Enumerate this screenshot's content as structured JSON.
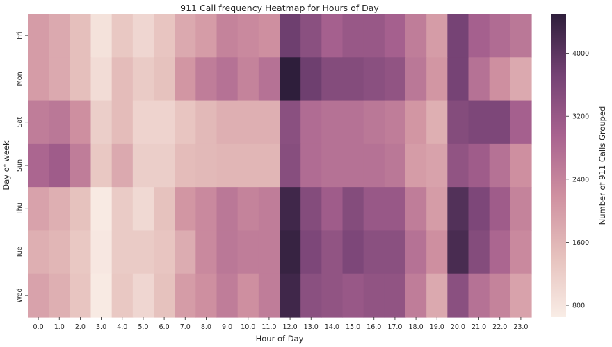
{
  "chart_data": {
    "type": "heatmap",
    "title": "911 Call frequency Heatmap for Hours of Day",
    "xlabel": "Hour of Day",
    "ylabel": "Day of week",
    "x": [
      "0.0",
      "1.0",
      "2.0",
      "3.0",
      "4.0",
      "5.0",
      "6.0",
      "7.0",
      "8.0",
      "9.0",
      "10.0",
      "11.0",
      "12.0",
      "13.0",
      "14.0",
      "15.0",
      "16.0",
      "17.0",
      "18.0",
      "19.0",
      "20.0",
      "21.0",
      "22.0",
      "23.0"
    ],
    "y": [
      "Fri",
      "Mon",
      "Sat",
      "Sun",
      "Thu",
      "Tue",
      "Wed"
    ],
    "values": [
      [
        2000,
        1800,
        1450,
        850,
        1300,
        1050,
        1350,
        1800,
        2000,
        2400,
        2300,
        2200,
        3800,
        3400,
        3000,
        3200,
        3200,
        3000,
        2500,
        2000,
        3700,
        3000,
        2800,
        2600
      ],
      [
        2000,
        1800,
        1450,
        950,
        1500,
        1250,
        1400,
        2100,
        2500,
        2700,
        2400,
        2700,
        4500,
        3800,
        3500,
        3500,
        3400,
        3300,
        2600,
        2100,
        3700,
        2700,
        2200,
        1800
      ],
      [
        2500,
        2600,
        2200,
        1200,
        1500,
        1100,
        1100,
        1350,
        1550,
        1700,
        1700,
        1700,
        3400,
        2800,
        2700,
        2700,
        2600,
        2500,
        2100,
        1700,
        3500,
        3600,
        3600,
        3000
      ],
      [
        2900,
        3100,
        2500,
        1300,
        1800,
        1200,
        1200,
        1500,
        1550,
        1600,
        1600,
        1600,
        3450,
        2800,
        2700,
        2700,
        2700,
        2600,
        2000,
        1900,
        3300,
        3100,
        2700,
        2200
      ],
      [
        1900,
        1700,
        1400,
        700,
        1250,
        1000,
        1400,
        2100,
        2300,
        2600,
        2400,
        2500,
        4300,
        3500,
        3100,
        3500,
        3200,
        3200,
        2500,
        2000,
        4100,
        3600,
        3100,
        2400
      ],
      [
        1700,
        1600,
        1300,
        750,
        1250,
        1250,
        1350,
        1750,
        2300,
        2600,
        2500,
        2500,
        4400,
        3600,
        3300,
        3600,
        3400,
        3400,
        2700,
        2200,
        4200,
        3500,
        2900,
        2300
      ],
      [
        1900,
        1700,
        1350,
        700,
        1300,
        1050,
        1400,
        2000,
        2200,
        2500,
        2200,
        2500,
        4300,
        3400,
        3300,
        3200,
        3300,
        3300,
        2500,
        1800,
        3400,
        2700,
        2400,
        1900
      ]
    ],
    "vmin": 650,
    "vmax": 4500,
    "colorbar": {
      "label": "Number of 911 Calls Grouped",
      "ticks": [
        800,
        1600,
        2400,
        3200,
        4000
      ]
    },
    "colormap": [
      "#f9ede6",
      "#e6c1bd",
      "#cf90a0",
      "#a8628f",
      "#744274",
      "#2e1e3b"
    ]
  }
}
